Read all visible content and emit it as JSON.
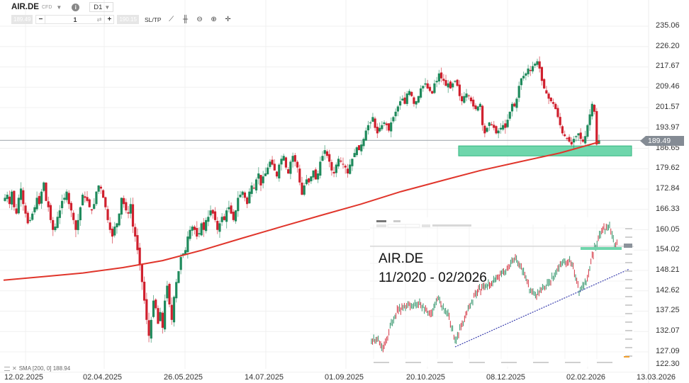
{
  "toolbar": {
    "symbol": "AIR.DE",
    "instrument_type": "CFD",
    "timeframe": "D1",
    "bid_price": "189.49",
    "ask_price": "190.15",
    "quantity": "1",
    "minus_label": "−",
    "plus_label": "+",
    "swap_icon": "⇄",
    "sltp_label": "SL/TP",
    "tools": [
      {
        "name": "line-chart-icon",
        "glyph": "⟋"
      },
      {
        "name": "candlestick-icon",
        "glyph": "╫"
      },
      {
        "name": "zoom-out-icon",
        "glyph": "⊖"
      },
      {
        "name": "zoom-in-icon",
        "glyph": "⊕"
      },
      {
        "name": "crosshair-icon",
        "glyph": "✛"
      }
    ]
  },
  "indicator_legend": {
    "label": "SMA [200, 0] 188.94"
  },
  "current_price_tag": "189.49",
  "inset": {
    "title_line1": "AIR.DE",
    "title_line2": "11/2020 - 02/2026"
  },
  "colors": {
    "up": "#1f8a5c",
    "down": "#d0202e",
    "sma": "#e0352b",
    "support_zone": "#6fd6ac",
    "support_border": "#2fb57e",
    "trendline": "#3a3fae",
    "grid": "#f0f0f0",
    "price_line": "#9aa1a8"
  },
  "chart_data": [
    {
      "type": "candlestick",
      "title": "AIR.DE CFD D1",
      "xlabel": "",
      "ylabel": "",
      "x_ticks": [
        "12.02.2025",
        "02.04.2025",
        "26.05.2025",
        "14.07.2025",
        "01.09.2025",
        "20.10.2025",
        "08.12.2025",
        "02.02.2026",
        "13.03.2026"
      ],
      "y_ticks": [
        235.06,
        226.2,
        217.67,
        209.46,
        201.57,
        193.97,
        186.65,
        179.62,
        172.84,
        166.33,
        160.05,
        154.02,
        148.21,
        142.62,
        137.25,
        132.07,
        127.09,
        122.3
      ],
      "ylim": [
        122.3,
        237.0
      ],
      "grid": true,
      "current_price": 189.49,
      "approx_closes": [
        170,
        171,
        168,
        172,
        167,
        165,
        170,
        173,
        168,
        165,
        162,
        163,
        165,
        167,
        170,
        168,
        172,
        175,
        169,
        167,
        163,
        160,
        161,
        164,
        166,
        169,
        170,
        172,
        168,
        166,
        163,
        160,
        163,
        167,
        171,
        170,
        169,
        167,
        166,
        168,
        172,
        174,
        173,
        170,
        167,
        163,
        160,
        158,
        161,
        162,
        165,
        170,
        168,
        166,
        165,
        168,
        161,
        158,
        154,
        150,
        145,
        140,
        135,
        131,
        135,
        140,
        138,
        134,
        137,
        133,
        140,
        144,
        139,
        135,
        141,
        145,
        148,
        152,
        153,
        154,
        158,
        160,
        161,
        160,
        158,
        159,
        162,
        160,
        163,
        164,
        166,
        165,
        163,
        160,
        162,
        164,
        163,
        166,
        167,
        165,
        163,
        166,
        170,
        171,
        172,
        170,
        168,
        172,
        174,
        173,
        176,
        178,
        174,
        177,
        178,
        180,
        182,
        181,
        179,
        177,
        181,
        183,
        184,
        180,
        178,
        182,
        184,
        182,
        180,
        175,
        171,
        174,
        176,
        175,
        177,
        179,
        176,
        178,
        182,
        184,
        186,
        184,
        182,
        179,
        178,
        181,
        183,
        182,
        181,
        180,
        178,
        181,
        183,
        185,
        187,
        186,
        188,
        190,
        193,
        195,
        196,
        198,
        194,
        192,
        194,
        195,
        196,
        195,
        193,
        196,
        198,
        200,
        202,
        204,
        205,
        203,
        207,
        208,
        206,
        203,
        204,
        206,
        209,
        210,
        211,
        209,
        208,
        207,
        211,
        212,
        215,
        213,
        212,
        210,
        211,
        209,
        211,
        212,
        210,
        206,
        204,
        206,
        207,
        206,
        204,
        202,
        201,
        202,
        203,
        195,
        192,
        194,
        196,
        195,
        194,
        192,
        193,
        194,
        195,
        194,
        197,
        200,
        203,
        202,
        205,
        210,
        213,
        214,
        215,
        217,
        216,
        218,
        219,
        220,
        217,
        212,
        209,
        207,
        205,
        204,
        203,
        201,
        198,
        195,
        192,
        191,
        190,
        189,
        188,
        190,
        191,
        192,
        190,
        189,
        191,
        195,
        199,
        203,
        200,
        188,
        189.49
      ],
      "series": [
        {
          "name": "SMA [200, 0]",
          "last_value": 188.94,
          "approx_values_start_to_end": [
            145.5,
            146.5,
            147.5,
            149,
            151,
            154,
            157.5,
            161,
            164.5,
            168,
            172,
            175.5,
            179,
            182,
            185,
            188.94
          ]
        }
      ],
      "annotations": [
        {
          "type": "zone",
          "label": "support zone",
          "from": 184.0,
          "to": 187.5,
          "x_from": "≈27.10.2025",
          "x_to": "≈28.02.2026"
        },
        {
          "type": "hline",
          "label": "current price",
          "value": 189.49
        }
      ]
    },
    {
      "type": "candlestick",
      "title": "AIR.DE 11/2020 - 02/2026",
      "note": "inset long-term chart",
      "trendline": "rising support from 2022 low to 2026",
      "annotations": [
        {
          "type": "zone",
          "label": "support zone near current price"
        }
      ]
    }
  ]
}
